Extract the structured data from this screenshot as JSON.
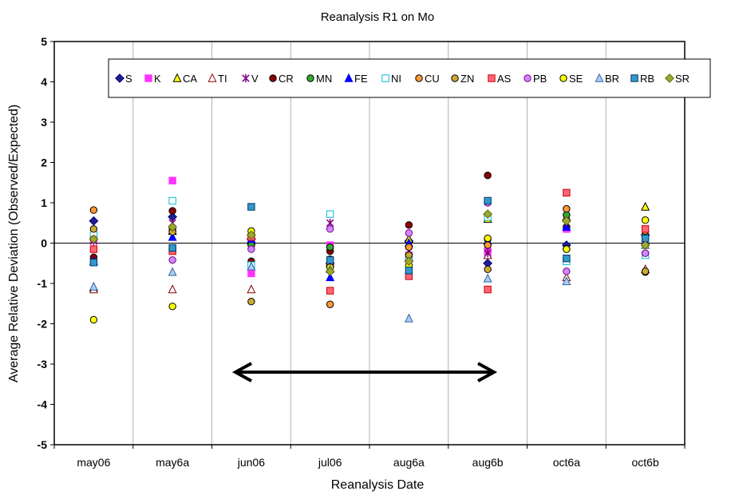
{
  "chart_data": {
    "type": "scatter",
    "title": "Reanalysis R1 on Mo",
    "xlabel": "Reanalysis Date",
    "ylabel": "Average Relative Deviation (Observed/Expected)",
    "ylim": [
      -5,
      5
    ],
    "yticks": [
      5,
      4,
      3,
      2,
      1,
      0,
      -1,
      -2,
      -3,
      -4,
      -5
    ],
    "categories": [
      "may06",
      "may6a",
      "jun06",
      "jul06",
      "aug6a",
      "aug6b",
      "oct6a",
      "oct6b"
    ],
    "grid": "vertical lines between categories",
    "legend_position": "top",
    "annotation": {
      "type": "double-arrow",
      "from": "jun06",
      "to": "aug6b",
      "y": -3.2
    },
    "series": [
      {
        "name": "S",
        "marker": "diamond",
        "fill": "#1f1f8f",
        "stroke": "#000080",
        "values": [
          0.55,
          0.65,
          0.1,
          -0.5,
          0.05,
          -0.5,
          -0.05,
          0.2
        ]
      },
      {
        "name": "K",
        "marker": "square",
        "fill": "#ff33ff",
        "stroke": "#ff33ff",
        "values": [
          0.1,
          1.55,
          -0.75,
          -0.05,
          -0.3,
          -0.2,
          0.35,
          0.15
        ]
      },
      {
        "name": "CA",
        "marker": "triangle",
        "fill": "#ffff00",
        "stroke": "#000000",
        "values": [
          -1.1,
          0.3,
          0.05,
          -0.5,
          0.1,
          0.6,
          0.65,
          0.9
        ]
      },
      {
        "name": "TI",
        "marker": "triangle",
        "fill": "#ffffff",
        "stroke": "#8b0000",
        "values": [
          -1.15,
          -1.15,
          -1.15,
          -0.45,
          -0.35,
          -0.3,
          -0.85,
          -0.65
        ]
      },
      {
        "name": "V",
        "marker": "star",
        "fill": "#800080",
        "stroke": "#800080",
        "values": [
          0.05,
          0.5,
          0.0,
          0.5,
          -0.2,
          -0.25,
          0.6,
          0.05
        ]
      },
      {
        "name": "CR",
        "marker": "circle",
        "fill": "#8b0000",
        "stroke": "#000000",
        "values": [
          -0.35,
          0.8,
          -0.45,
          -0.2,
          0.45,
          1.68,
          0.4,
          -0.72
        ]
      },
      {
        "name": "MN",
        "marker": "circle",
        "fill": "#33aa33",
        "stroke": "#000000",
        "values": [
          0.15,
          0.3,
          -0.05,
          -0.1,
          -0.4,
          0.1,
          0.7,
          0.2
        ]
      },
      {
        "name": "FE",
        "marker": "triangle",
        "fill": "#0000ff",
        "stroke": "#0000ff",
        "values": [
          -0.45,
          0.15,
          0.1,
          -0.85,
          0.0,
          0.05,
          0.4,
          0.05
        ]
      },
      {
        "name": "NI",
        "marker": "square",
        "fill": "#ffffff",
        "stroke": "#00bcd4",
        "values": [
          0.2,
          1.05,
          -0.55,
          0.72,
          -0.35,
          0.65,
          -0.45,
          -0.3
        ]
      },
      {
        "name": "CU",
        "marker": "circle",
        "fill": "#ff9933",
        "stroke": "#000000",
        "values": [
          0.82,
          0.35,
          0.2,
          -1.52,
          -0.1,
          -0.05,
          0.85,
          0.3
        ]
      },
      {
        "name": "ZN",
        "marker": "circle",
        "fill": "#ccaa33",
        "stroke": "#000000",
        "values": [
          0.35,
          0.28,
          -1.45,
          -0.4,
          -0.3,
          -0.65,
          -0.15,
          -0.7
        ]
      },
      {
        "name": "AS",
        "marker": "square",
        "fill": "#ff6677",
        "stroke": "#cc0000",
        "values": [
          -0.15,
          -0.2,
          0.15,
          -1.18,
          -0.82,
          -1.15,
          1.25,
          0.35
        ]
      },
      {
        "name": "PB",
        "marker": "circle",
        "fill": "#cc88ff",
        "stroke": "#800080",
        "values": [
          0.1,
          -0.42,
          -0.15,
          0.35,
          0.25,
          1.0,
          -0.7,
          -0.25
        ]
      },
      {
        "name": "SE",
        "marker": "circle",
        "fill": "#ffff00",
        "stroke": "#000000",
        "values": [
          -1.9,
          -1.57,
          0.3,
          -0.6,
          -0.55,
          0.12,
          -0.15,
          0.57
        ]
      },
      {
        "name": "BR",
        "marker": "triangle",
        "fill": "#aaccff",
        "stroke": "#336699",
        "values": [
          -1.08,
          -0.72,
          -0.58,
          -0.65,
          -1.87,
          -0.88,
          -0.95,
          -0.05
        ]
      },
      {
        "name": "RB",
        "marker": "square",
        "fill": "#3399cc",
        "stroke": "#003366",
        "values": [
          -0.48,
          -0.12,
          0.9,
          -0.42,
          -0.68,
          1.05,
          -0.38,
          0.12
        ]
      },
      {
        "name": "SR",
        "marker": "diamond",
        "fill": "#99aa33",
        "stroke": "#666600",
        "values": [
          0.1,
          0.4,
          0.2,
          -0.7,
          -0.45,
          0.72,
          0.55,
          -0.05
        ]
      }
    ]
  }
}
